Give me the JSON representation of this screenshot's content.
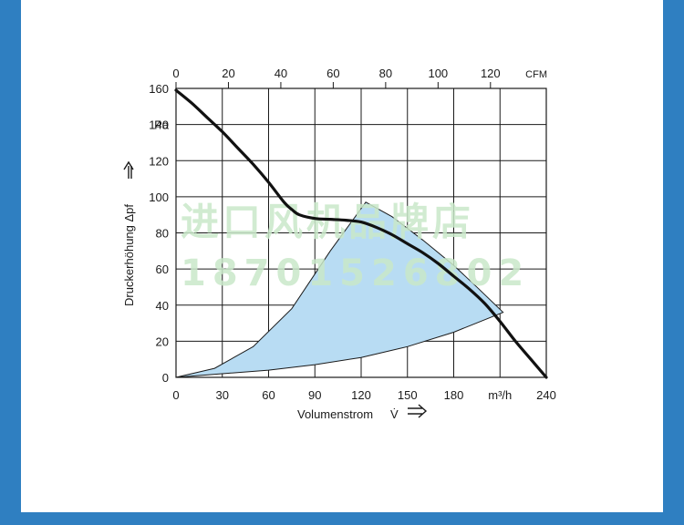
{
  "watermark": {
    "line1": "进口风机品牌店",
    "line2": "18701526802"
  },
  "chart_data": {
    "type": "line",
    "xlabel": "Volumenstrom",
    "xlabel_symbol": "V̇",
    "x_unit": "m³/h",
    "x_ticks": [
      0,
      30,
      60,
      90,
      120,
      150,
      180,
      240
    ],
    "xlim": [
      0,
      240
    ],
    "top_axis_label": "CFM",
    "top_ticks": [
      0,
      20,
      40,
      60,
      80,
      100,
      120
    ],
    "top_xlim": [
      0,
      141.3
    ],
    "ylabel": "Druckerhöhung Δpf",
    "y_unit": "Pa",
    "y_ticks": [
      0,
      20,
      40,
      60,
      80,
      100,
      120,
      140,
      160
    ],
    "ylim": [
      0,
      160
    ],
    "grid": true,
    "series": [
      {
        "x": [
          0,
          10,
          20,
          30,
          40,
          50,
          60,
          70,
          75,
          80,
          90,
          100,
          110,
          120,
          130,
          140,
          150,
          160,
          170,
          180,
          190,
          200,
          210,
          220,
          230,
          240
        ],
        "y": [
          159,
          152,
          144,
          136,
          127,
          118,
          108,
          97,
          93,
          90,
          88,
          87.5,
          87,
          86,
          83,
          79,
          74,
          69,
          63,
          56,
          49,
          41,
          31,
          20,
          10,
          0
        ]
      }
    ],
    "operating_region": {
      "color": "#b8dcf3",
      "outline": [
        [
          0,
          0
        ],
        [
          25,
          5
        ],
        [
          50,
          17
        ],
        [
          75,
          38
        ],
        [
          100,
          70
        ],
        [
          123,
          97
        ],
        [
          140,
          89
        ],
        [
          160,
          76
        ],
        [
          180,
          62
        ],
        [
          195,
          50
        ],
        [
          212,
          36
        ],
        [
          180,
          25
        ],
        [
          150,
          17
        ],
        [
          120,
          11
        ],
        [
          90,
          7
        ],
        [
          60,
          4
        ],
        [
          30,
          2
        ],
        [
          0,
          0
        ]
      ]
    }
  }
}
